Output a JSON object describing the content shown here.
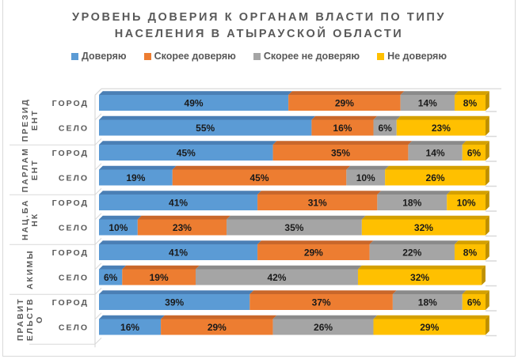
{
  "chart_data": {
    "type": "bar",
    "orientation": "horizontal-stacked-100",
    "title_lines": [
      "УРОВЕНЬ ДОВЕРИЯ К ОРГАНАМ ВЛАСТИ ПО ТИПУ",
      "НАСЕЛЕНИЯ В АТЫРАУСКОЙ ОБЛАСТИ"
    ],
    "legend_position": "top",
    "series": [
      {
        "name": "Доверяю",
        "color": "#5b9bd5",
        "top_color": "#4a7fb5",
        "side_color": "#3f6fa0"
      },
      {
        "name": "Скорее доверяю",
        "color": "#ed7d31",
        "top_color": "#c9672a",
        "side_color": "#b35c24"
      },
      {
        "name": "Скорее не доверяю",
        "color": "#a5a5a5",
        "top_color": "#8a8a8a",
        "side_color": "#7d7d7d"
      },
      {
        "name": "Не доверяю",
        "color": "#ffc000",
        "top_color": "#d4a000",
        "side_color": "#bf9000"
      }
    ],
    "groups": [
      {
        "name_lines": [
          "ПРЕЗИД",
          "ЕНТ"
        ],
        "rows": [
          {
            "label": "ГОРОД",
            "values": [
              49,
              29,
              14,
              8
            ]
          },
          {
            "label": "СЕЛО",
            "values": [
              55,
              16,
              6,
              23
            ]
          }
        ]
      },
      {
        "name_lines": [
          "ПАРЛАМ",
          "ЕНТ"
        ],
        "rows": [
          {
            "label": "ГОРОД",
            "values": [
              45,
              35,
              14,
              6
            ]
          },
          {
            "label": "СЕЛО",
            "values": [
              19,
              45,
              10,
              26
            ]
          }
        ]
      },
      {
        "name_lines": [
          "НАЦ.БА",
          "НК"
        ],
        "rows": [
          {
            "label": "ГОРОД",
            "values": [
              41,
              31,
              18,
              10
            ]
          },
          {
            "label": "СЕЛО",
            "values": [
              10,
              23,
              35,
              32
            ]
          }
        ]
      },
      {
        "name_lines": [
          "АКИМЫ"
        ],
        "rows": [
          {
            "label": "ГОРОД",
            "values": [
              41,
              29,
              22,
              8
            ]
          },
          {
            "label": "СЕЛО",
            "values": [
              6,
              19,
              42,
              32
            ]
          }
        ]
      },
      {
        "name_lines": [
          "ПРАВИТ",
          "ЕЛЬСТВ",
          "О"
        ],
        "rows": [
          {
            "label": "ГОРОД",
            "values": [
              39,
              37,
              18,
              6
            ]
          },
          {
            "label": "СЕЛО",
            "values": [
              16,
              29,
              26,
              29
            ]
          }
        ]
      }
    ],
    "value_suffix": "%",
    "xlim": [
      0,
      100
    ],
    "grid": false
  }
}
